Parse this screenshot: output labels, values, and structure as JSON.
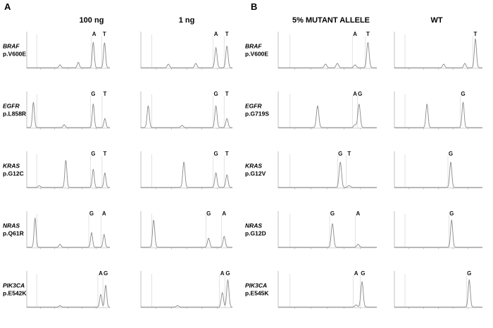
{
  "figure": {
    "panel_a": {
      "letter": "A",
      "columns": [
        "100 ng",
        "1 ng"
      ],
      "rows": [
        {
          "gene": "BRAF",
          "variant": "p.V600E"
        },
        {
          "gene": "EGFR",
          "variant": "p.L858R"
        },
        {
          "gene": "KRAS",
          "variant": "p.G12C"
        },
        {
          "gene": "NRAS",
          "variant": "p.Q61R"
        },
        {
          "gene": "PIK3CA",
          "variant": "p.E542K"
        }
      ]
    },
    "panel_b": {
      "letter": "B",
      "columns": [
        "5% MUTANT ALLELE",
        "WT"
      ],
      "rows": [
        {
          "gene": "BRAF",
          "variant": "p.V600E"
        },
        {
          "gene": "EGFR",
          "variant": "p.G719S"
        },
        {
          "gene": "KRAS",
          "variant": "p.G12V"
        },
        {
          "gene": "NRAS",
          "variant": "p.G12D"
        },
        {
          "gene": "PIK3CA",
          "variant": "p.E545K"
        }
      ]
    },
    "colors": {
      "trace": "#8a8a8a",
      "axis": "#9a9a9a",
      "text": "#111111",
      "marker_red": "#e06060"
    }
  },
  "chart_data": [
    {
      "type": "line",
      "panel": "A",
      "column": "100 ng",
      "row": "BRAF p.V600E",
      "peaks": [
        {
          "x": 0.94,
          "h": 0.1
        },
        {
          "x": 0.4,
          "h": 0.08
        },
        {
          "x": 0.62,
          "h": 0.15
        },
        {
          "x": 0.8,
          "h": 0.7
        },
        {
          "x": 0.935,
          "h": 0.6
        }
      ],
      "peak_labels": [
        {
          "text": "A",
          "x": 0.81
        },
        {
          "text": "T",
          "x": 0.935
        }
      ]
    },
    {
      "type": "line",
      "panel": "A",
      "column": "1 ng",
      "row": "BRAF p.V600E",
      "peaks": [
        {
          "x": 0.3,
          "h": 0.1
        },
        {
          "x": 0.6,
          "h": 0.12
        },
        {
          "x": 0.82,
          "h": 0.55
        },
        {
          "x": 0.94,
          "h": 0.6
        }
      ],
      "peak_labels": [
        {
          "text": "A",
          "x": 0.82
        },
        {
          "text": "T",
          "x": 0.94
        }
      ]
    },
    {
      "type": "line",
      "panel": "A",
      "column": "100 ng",
      "row": "EGFR p.L858R",
      "peaks": [
        {
          "x": 0.08,
          "h": 0.7
        },
        {
          "x": 0.45,
          "h": 0.08
        },
        {
          "x": 0.8,
          "h": 0.65
        },
        {
          "x": 0.94,
          "h": 0.25
        }
      ],
      "peak_labels": [
        {
          "text": "G",
          "x": 0.8
        },
        {
          "text": "T",
          "x": 0.94
        }
      ]
    },
    {
      "type": "line",
      "panel": "A",
      "column": "1 ng",
      "row": "EGFR p.L858R",
      "peaks": [
        {
          "x": 0.08,
          "h": 0.6
        },
        {
          "x": 0.45,
          "h": 0.06
        },
        {
          "x": 0.82,
          "h": 0.6
        },
        {
          "x": 0.94,
          "h": 0.25
        }
      ],
      "peak_labels": [
        {
          "text": "G",
          "x": 0.82
        },
        {
          "text": "T",
          "x": 0.94
        }
      ]
    },
    {
      "type": "line",
      "panel": "A",
      "column": "100 ng",
      "row": "KRAS p.G12C",
      "peaks": [
        {
          "x": 0.15,
          "h": 0.05
        },
        {
          "x": 0.47,
          "h": 0.75
        },
        {
          "x": 0.8,
          "h": 0.5
        },
        {
          "x": 0.94,
          "h": 0.4
        }
      ],
      "peak_labels": [
        {
          "text": "G",
          "x": 0.8
        },
        {
          "text": "T",
          "x": 0.94
        }
      ]
    },
    {
      "type": "line",
      "panel": "A",
      "column": "1 ng",
      "row": "KRAS p.G12C",
      "peaks": [
        {
          "x": 0.47,
          "h": 0.7
        },
        {
          "x": 0.82,
          "h": 0.4
        },
        {
          "x": 0.94,
          "h": 0.35
        }
      ],
      "peak_labels": [
        {
          "text": "G",
          "x": 0.82
        },
        {
          "text": "T",
          "x": 0.94
        }
      ]
    },
    {
      "type": "line",
      "panel": "A",
      "column": "100 ng",
      "row": "NRAS p.Q61R",
      "peaks": [
        {
          "x": 0.1,
          "h": 0.8
        },
        {
          "x": 0.4,
          "h": 0.08
        },
        {
          "x": 0.78,
          "h": 0.4
        },
        {
          "x": 0.93,
          "h": 0.35
        }
      ],
      "peak_labels": [
        {
          "text": "G",
          "x": 0.78
        },
        {
          "text": "A",
          "x": 0.93
        }
      ]
    },
    {
      "type": "line",
      "panel": "A",
      "column": "1 ng",
      "row": "NRAS p.Q61R",
      "peaks": [
        {
          "x": 0.14,
          "h": 0.75
        },
        {
          "x": 0.74,
          "h": 0.25
        },
        {
          "x": 0.91,
          "h": 0.3
        }
      ],
      "peak_labels": [
        {
          "text": "G",
          "x": 0.74
        },
        {
          "text": "A",
          "x": 0.91
        }
      ]
    },
    {
      "type": "line",
      "panel": "A",
      "column": "100 ng",
      "row": "PIK3CA p.E542K",
      "peaks": [
        {
          "x": 0.4,
          "h": 0.04
        },
        {
          "x": 0.89,
          "h": 0.35
        },
        {
          "x": 0.95,
          "h": 0.6
        }
      ],
      "peak_labels": [
        {
          "text": "A",
          "x": 0.89
        },
        {
          "text": "G",
          "x": 0.95
        }
      ]
    },
    {
      "type": "line",
      "panel": "A",
      "column": "1 ng",
      "row": "PIK3CA p.E542K",
      "peaks": [
        {
          "x": 0.4,
          "h": 0.04
        },
        {
          "x": 0.89,
          "h": 0.4
        },
        {
          "x": 0.95,
          "h": 0.75
        }
      ],
      "peak_labels": [
        {
          "text": "A",
          "x": 0.89
        },
        {
          "text": "G",
          "x": 0.95
        }
      ]
    },
    {
      "type": "line",
      "panel": "B",
      "column": "5% MUTANT ALLELE",
      "row": "BRAF p.V600E",
      "peaks": [
        {
          "x": 0.48,
          "h": 0.1
        },
        {
          "x": 0.6,
          "h": 0.12
        },
        {
          "x": 0.78,
          "h": 0.08
        },
        {
          "x": 0.91,
          "h": 0.7
        }
      ],
      "peak_labels": [
        {
          "text": "A",
          "x": 0.78
        },
        {
          "text": "T",
          "x": 0.91
        }
      ]
    },
    {
      "type": "line",
      "panel": "B",
      "column": "WT",
      "row": "BRAF p.V600E",
      "peaks": [
        {
          "x": 0.56,
          "h": 0.1
        },
        {
          "x": 0.8,
          "h": 0.12
        },
        {
          "x": 0.92,
          "h": 0.8
        }
      ],
      "peak_labels": [
        {
          "text": "T",
          "x": 0.92
        }
      ]
    },
    {
      "type": "line",
      "panel": "B",
      "column": "5% MUTANT ALLELE",
      "row": "EGFR p.G719S",
      "peaks": [
        {
          "x": 0.4,
          "h": 0.6
        },
        {
          "x": 0.78,
          "h": 0.08
        },
        {
          "x": 0.82,
          "h": 0.65
        }
      ],
      "peak_labels": [
        {
          "text": "A",
          "x": 0.78
        },
        {
          "text": "G",
          "x": 0.83
        }
      ]
    },
    {
      "type": "line",
      "panel": "B",
      "column": "WT",
      "row": "EGFR p.G719S",
      "peaks": [
        {
          "x": 0.37,
          "h": 0.65
        },
        {
          "x": 0.78,
          "h": 0.7
        }
      ],
      "peak_labels": [
        {
          "text": "G",
          "x": 0.78
        }
      ]
    },
    {
      "type": "line",
      "panel": "B",
      "column": "5% MUTANT ALLELE",
      "row": "KRAS p.G12V",
      "peaks": [
        {
          "x": 0.63,
          "h": 0.7
        },
        {
          "x": 0.72,
          "h": 0.05
        }
      ],
      "peak_labels": [
        {
          "text": "G",
          "x": 0.63
        },
        {
          "text": "T",
          "x": 0.72
        }
      ]
    },
    {
      "type": "line",
      "panel": "B",
      "column": "WT",
      "row": "KRAS p.G12V",
      "peaks": [
        {
          "x": 0.64,
          "h": 0.7
        }
      ],
      "peak_labels": [
        {
          "text": "G",
          "x": 0.64
        }
      ]
    },
    {
      "type": "line",
      "panel": "B",
      "column": "5% MUTANT ALLELE",
      "row": "NRAS p.G12D",
      "peaks": [
        {
          "x": 0.55,
          "h": 0.65
        },
        {
          "x": 0.81,
          "h": 0.08
        }
      ],
      "peak_labels": [
        {
          "text": "G",
          "x": 0.55
        },
        {
          "text": "A",
          "x": 0.81
        }
      ]
    },
    {
      "type": "line",
      "panel": "B",
      "column": "WT",
      "row": "NRAS p.G12D",
      "peaks": [
        {
          "x": 0.65,
          "h": 0.75
        }
      ],
      "peak_labels": [
        {
          "text": "G",
          "x": 0.65
        }
      ]
    },
    {
      "type": "line",
      "panel": "B",
      "column": "5% MUTANT ALLELE",
      "row": "PIK3CA p.E545K",
      "peaks": [
        {
          "x": 0.79,
          "h": 0.06
        },
        {
          "x": 0.85,
          "h": 0.7
        }
      ],
      "peak_labels": [
        {
          "text": "A",
          "x": 0.79
        },
        {
          "text": "G",
          "x": 0.86
        }
      ]
    },
    {
      "type": "line",
      "panel": "B",
      "column": "WT",
      "row": "PIK3CA p.E545K",
      "peaks": [
        {
          "x": 0.85,
          "h": 0.75
        }
      ],
      "peak_labels": [
        {
          "text": "G",
          "x": 0.85
        }
      ]
    }
  ]
}
